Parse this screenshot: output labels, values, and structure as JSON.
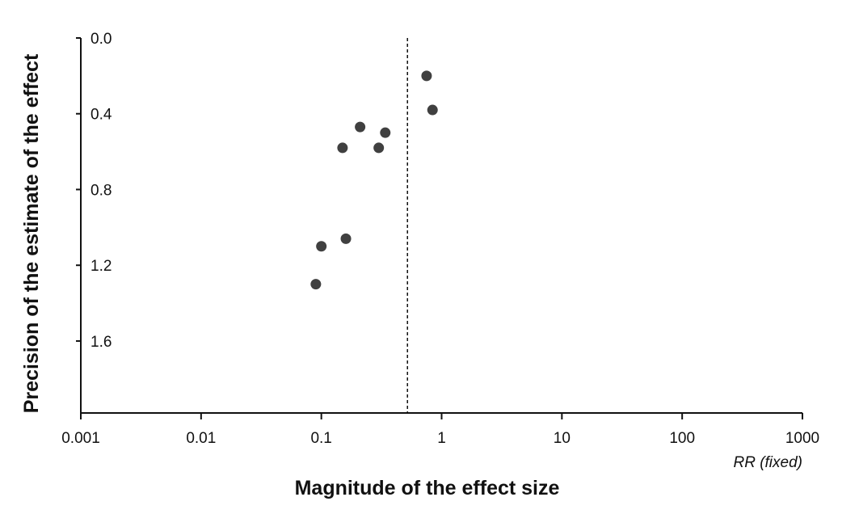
{
  "chart_data": {
    "type": "scatter",
    "xlabel": "Magnitude of the effect size",
    "ylabel": "Precision of the estimate of the effect",
    "x_scale": "log",
    "x_ticks": [
      0.001,
      0.01,
      0.1,
      1,
      10,
      100,
      1000
    ],
    "x_tick_labels": [
      "0.001",
      "0.01",
      "0.1",
      "1",
      "10",
      "100",
      "1000"
    ],
    "y_ticks": [
      0.0,
      0.4,
      0.8,
      1.2,
      1.6
    ],
    "y_tick_labels": [
      "0.0",
      "0.4",
      "0.8",
      "1.2",
      "1.6"
    ],
    "y_inverted": true,
    "xlim": [
      0.001,
      1000
    ],
    "ylim": [
      0.0,
      1.98
    ],
    "reference_line": {
      "x": 0.52,
      "style": "dashed"
    },
    "annotation": "RR (fixed)",
    "grid": false,
    "legend": "none",
    "point_color": "#404040",
    "points": [
      {
        "x": 0.75,
        "y": 0.2
      },
      {
        "x": 0.84,
        "y": 0.38
      },
      {
        "x": 0.21,
        "y": 0.47
      },
      {
        "x": 0.34,
        "y": 0.5
      },
      {
        "x": 0.15,
        "y": 0.58
      },
      {
        "x": 0.3,
        "y": 0.58
      },
      {
        "x": 0.16,
        "y": 1.06
      },
      {
        "x": 0.1,
        "y": 1.1
      },
      {
        "x": 0.09,
        "y": 1.3
      }
    ]
  }
}
